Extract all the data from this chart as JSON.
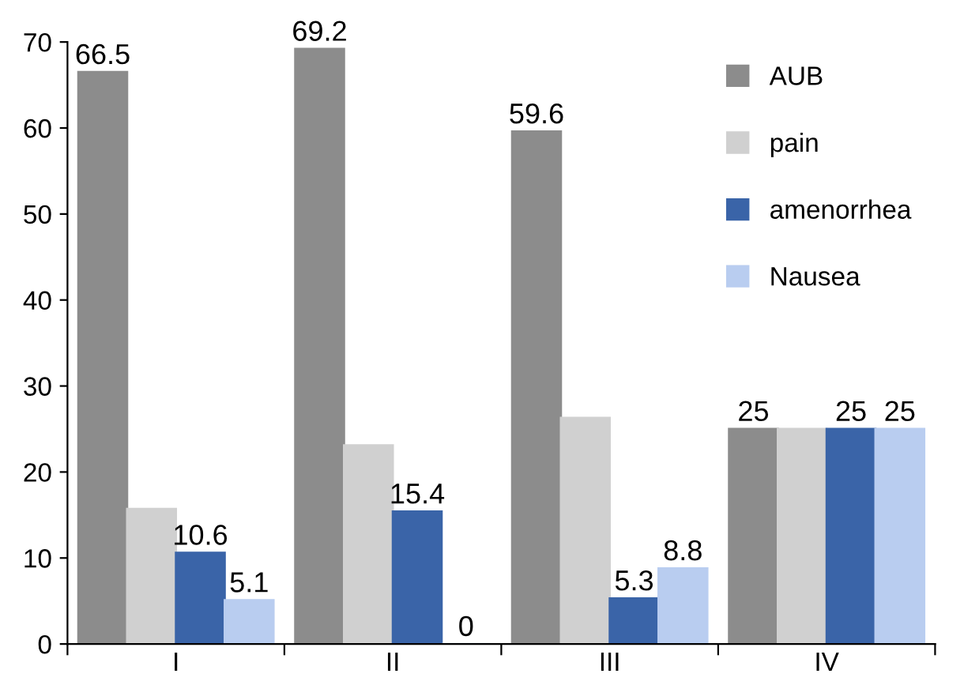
{
  "chart_data": {
    "type": "bar",
    "categories": [
      "I",
      "II",
      "III",
      "IV"
    ],
    "series": [
      {
        "name": "AUB",
        "color": "#8c8c8c",
        "values": [
          66.5,
          69.2,
          59.6,
          25
        ],
        "value_labels": [
          "66.5",
          "69.2",
          "59.6",
          "25"
        ]
      },
      {
        "name": "pain",
        "color": "#d0d0d0",
        "values": [
          15.7,
          23.1,
          26.3,
          25
        ],
        "value_labels": [
          null,
          null,
          null,
          null
        ]
      },
      {
        "name": "amenorrhea",
        "color": "#3a64a8",
        "values": [
          10.6,
          15.4,
          5.3,
          25
        ],
        "value_labels": [
          "10.6",
          "15.4",
          "5.3",
          "25"
        ]
      },
      {
        "name": "Nausea",
        "color": "#b9cdf0",
        "values": [
          5.1,
          0,
          8.8,
          25
        ],
        "value_labels": [
          "5.1",
          "0",
          "8.8",
          "25"
        ]
      }
    ],
    "ylim": [
      0,
      70
    ],
    "yticks": [
      0,
      10,
      20,
      30,
      40,
      50,
      60,
      70
    ],
    "grid": false,
    "legend": "top right"
  }
}
